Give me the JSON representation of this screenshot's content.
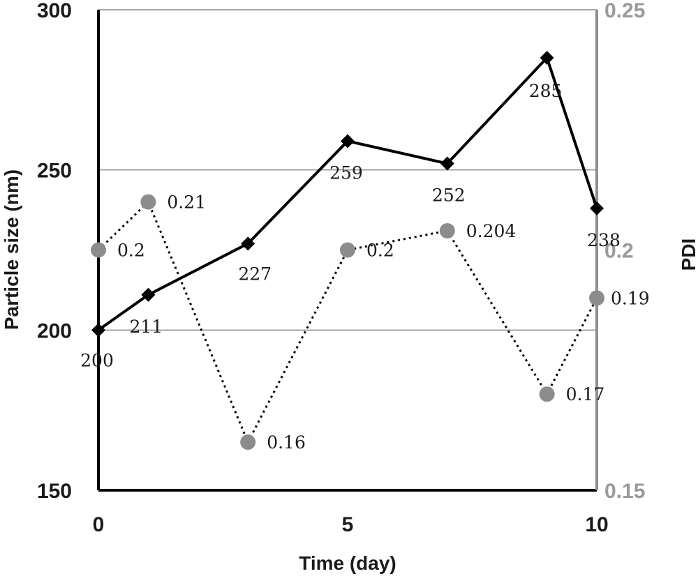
{
  "chart_data": {
    "type": "line",
    "xlabel": "Time (day)",
    "ylabel_left": "Particle size (nm)",
    "ylabel_right": "PDI",
    "xlim": [
      0,
      10
    ],
    "ylim_left": [
      150,
      300
    ],
    "ylim_right": [
      0.15,
      0.25
    ],
    "x_ticks": [
      "0",
      "5",
      "10"
    ],
    "y_left_ticks": [
      "150",
      "200",
      "250",
      "300"
    ],
    "y_right_ticks": [
      "0.15",
      "0.2",
      "0.25"
    ],
    "grid": "horizontal",
    "series": [
      {
        "axis": "left",
        "style": "solid",
        "marker": "diamond",
        "color": "#000000",
        "x": [
          0,
          1,
          3,
          5,
          7,
          9,
          10
        ],
        "values": [
          200,
          211,
          227,
          259,
          252,
          285,
          238
        ],
        "labels": [
          "200",
          "211",
          "227",
          "259",
          "252",
          "285",
          "238"
        ]
      },
      {
        "axis": "right",
        "style": "dotted",
        "marker": "circle",
        "color": "#8c8c8c",
        "x": [
          0,
          1,
          3,
          5,
          7,
          9,
          10
        ],
        "values": [
          0.2,
          0.21,
          0.16,
          0.2,
          0.204,
          0.17,
          0.19
        ],
        "labels": [
          "0.2",
          "0.21",
          "0.16",
          "0.2",
          "0.204",
          "0.17",
          "0.19"
        ]
      }
    ]
  }
}
